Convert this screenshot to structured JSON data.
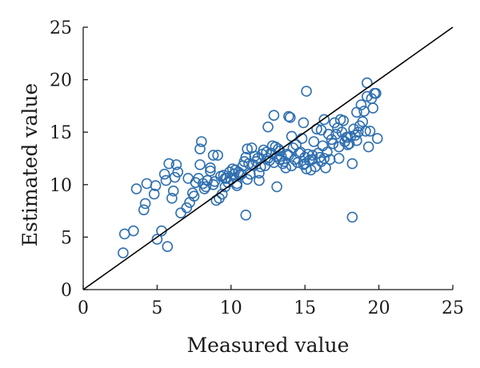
{
  "chart_data": {
    "type": "scatter",
    "title": "",
    "xlabel": "Measured value",
    "ylabel": "Estimated value",
    "xlim": [
      0,
      25
    ],
    "ylim": [
      0,
      25
    ],
    "xticks": [
      "0",
      "5",
      "10",
      "15",
      "20",
      "25"
    ],
    "yticks": [
      "0",
      "5",
      "10",
      "15",
      "20",
      "25"
    ],
    "grid": false,
    "legend": "none",
    "colors": {
      "points": "#2f6fb0",
      "reference_line": "#000000",
      "axes": "#1a1a1a"
    },
    "reference_line": {
      "label": "",
      "x": [
        0,
        25
      ],
      "y": [
        0,
        25
      ]
    },
    "series": [
      {
        "name": "",
        "marker": "open-circle",
        "x": [
          2.7,
          2.8,
          3.4,
          3.6,
          4.1,
          4.2,
          4.3,
          4.8,
          4.9,
          5.0,
          5.3,
          5.5,
          5.7,
          5.8,
          6.0,
          6.1,
          6.2,
          6.3,
          6.6,
          7.0,
          7.2,
          7.5,
          7.6,
          7.8,
          7.9,
          8.0,
          8.2,
          8.4,
          8.6,
          8.8,
          9.0,
          9.2,
          9.4,
          9.6,
          9.8,
          10.0,
          10.2,
          10.4,
          10.6,
          10.8,
          11.0,
          11.1,
          11.3,
          11.5,
          11.7,
          11.9,
          12.1,
          12.3,
          12.5,
          12.7,
          12.9,
          13.1,
          13.3,
          13.5,
          13.7,
          13.9,
          14.1,
          14.3,
          14.5,
          14.7,
          14.9,
          15.1,
          15.3,
          15.5,
          15.7,
          15.9,
          16.1,
          16.3,
          16.5,
          16.8,
          17.1,
          17.3,
          17.5,
          17.7,
          17.9,
          18.1,
          18.3,
          18.5,
          18.7,
          18.9,
          19.1,
          19.3,
          19.5,
          19.7,
          19.9,
          8.6,
          9.1,
          9.7,
          10.3,
          10.9,
          11.4,
          12.0,
          12.6,
          13.2,
          13.8,
          14.4,
          15.0,
          15.6,
          16.2,
          16.7,
          17.2,
          17.8,
          18.4,
          19.0,
          19.6,
          8.1,
          8.9,
          9.9,
          10.7,
          11.6,
          12.4,
          13.0,
          13.6,
          14.2,
          14.8,
          15.4,
          16.0,
          16.6,
          17.4,
          18.0,
          18.6,
          19.2,
          9.3,
          10.1,
          11.2,
          12.2,
          13.4,
          14.6,
          15.8,
          17.0,
          18.2,
          7.4,
          8.3,
          9.5,
          10.5,
          11.8,
          12.8,
          14.0,
          15.2,
          16.4,
          17.6,
          18.8,
          19.4,
          12.9,
          13.9,
          15.1,
          16.9,
          11.0,
          13.1,
          18.2,
          5.6,
          7.9,
          8.8,
          11.1,
          12.5,
          14.9,
          15.5,
          17.9,
          19.2,
          19.8,
          9.6,
          10.4,
          11.9,
          13.3,
          14.1,
          16.3,
          18.5,
          6.4,
          7.1,
          15.0,
          16.1,
          17.3
        ],
        "y": [
          3.5,
          5.3,
          5.6,
          9.6,
          7.6,
          8.2,
          10.1,
          9.1,
          9.9,
          4.8,
          5.6,
          11.0,
          4.1,
          12.0,
          8.7,
          9.4,
          10.7,
          11.9,
          7.3,
          7.8,
          8.3,
          8.9,
          10.2,
          10.6,
          13.4,
          14.1,
          9.6,
          10.4,
          11.3,
          10.0,
          8.5,
          8.7,
          9.1,
          9.8,
          10.2,
          10.5,
          11.0,
          10.1,
          10.9,
          11.8,
          12.6,
          10.5,
          11.0,
          11.9,
          12.2,
          10.4,
          12.9,
          11.8,
          12.5,
          13.0,
          12.1,
          12.7,
          13.2,
          12.0,
          11.6,
          12.8,
          11.8,
          12.4,
          12.1,
          13.1,
          11.9,
          11.5,
          12.3,
          12.8,
          11.7,
          13.0,
          12.2,
          12.5,
          13.1,
          14.3,
          14.8,
          13.6,
          15.0,
          14.1,
          13.8,
          14.6,
          15.3,
          14.2,
          15.6,
          16.0,
          15.1,
          13.6,
          18.2,
          18.7,
          14.4,
          11.6,
          12.8,
          10.6,
          11.4,
          12.2,
          13.5,
          11.7,
          12.3,
          13.4,
          12.9,
          13.8,
          12.6,
          14.1,
          13.7,
          12.4,
          15.4,
          14.5,
          14.7,
          17.0,
          17.3,
          10.1,
          10.3,
          11.2,
          11.0,
          12.7,
          13.1,
          13.6,
          12.2,
          13.5,
          14.4,
          11.4,
          12.6,
          14.8,
          16.2,
          13.9,
          15.0,
          18.4,
          10.8,
          11.5,
          12.0,
          13.3,
          12.7,
          13.0,
          15.3,
          15.9,
          12.0,
          9.2,
          9.8,
          10.9,
          11.2,
          12.5,
          13.7,
          16.4,
          12.9,
          11.6,
          16.1,
          17.6,
          15.1,
          16.6,
          16.5,
          18.9,
          13.9,
          7.1,
          9.8,
          6.9,
          10.4,
          11.9,
          12.8,
          13.4,
          15.5,
          15.9,
          12.4,
          14.5,
          19.7,
          18.7,
          10.6,
          9.9,
          11.1,
          12.4,
          14.6,
          16.2,
          16.9,
          11.2,
          10.6,
          12.0,
          15.2,
          12.5
        ]
      }
    ]
  }
}
